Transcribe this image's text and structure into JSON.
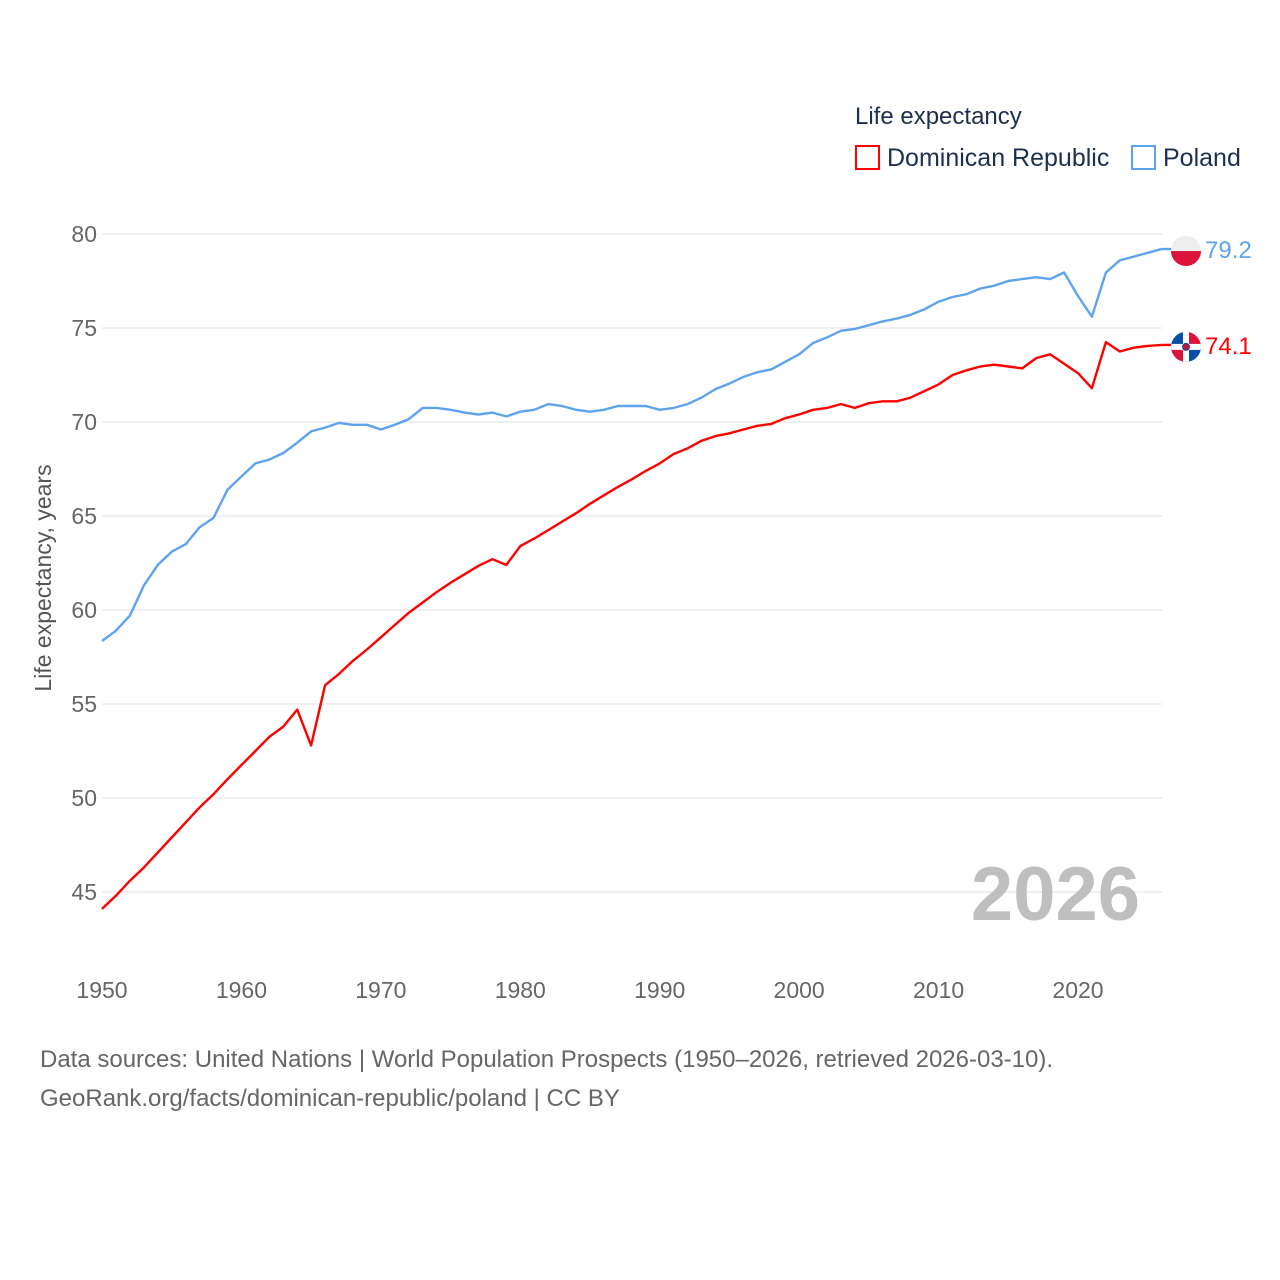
{
  "chart_data": {
    "type": "line",
    "legend_title": "Life expectancy",
    "ylabel": "Life expectancy, years",
    "xlabel": "",
    "xlim": [
      1950,
      2026
    ],
    "ylim": [
      43,
      81
    ],
    "yticks": [
      45,
      50,
      55,
      60,
      65,
      70,
      75,
      80
    ],
    "xticks": [
      1950,
      1960,
      1970,
      1980,
      1990,
      2000,
      2010,
      2020
    ],
    "grid": true,
    "legend_placement": "top-right",
    "current_year": "2026",
    "x_start": 1950,
    "series": [
      {
        "name": "Dominican Republic",
        "color": "#ff0000",
        "end_label": "74.1",
        "values": [
          44.1,
          44.8,
          45.6,
          46.3,
          47.1,
          47.9,
          48.7,
          49.5,
          50.2,
          51.0,
          51.75,
          52.5,
          53.25,
          53.8,
          54.7,
          52.8,
          56.0,
          56.6,
          57.3,
          57.9,
          58.55,
          59.2,
          59.85,
          60.4,
          60.95,
          61.45,
          61.9,
          62.35,
          62.7,
          62.4,
          63.4,
          63.8,
          64.25,
          64.7,
          65.15,
          65.65,
          66.1,
          66.55,
          66.95,
          67.4,
          67.8,
          68.3,
          68.6,
          69.0,
          69.25,
          69.4,
          69.6,
          69.8,
          69.9,
          70.2,
          70.4,
          70.65,
          70.75,
          70.95,
          70.75,
          71.0,
          71.1,
          71.1,
          71.3,
          71.65,
          72.0,
          72.5,
          72.75,
          72.95,
          73.05,
          72.95,
          72.85,
          73.4,
          73.6,
          73.1,
          72.6,
          71.8,
          74.25,
          73.75,
          73.95,
          74.05,
          74.1
        ]
      },
      {
        "name": "Poland",
        "color": "#5ea3ef",
        "end_label": "79.2",
        "values": [
          58.35,
          58.9,
          59.7,
          61.3,
          62.4,
          63.1,
          63.5,
          64.4,
          64.9,
          66.4,
          67.1,
          67.8,
          68.0,
          68.35,
          68.9,
          69.5,
          69.7,
          69.95,
          69.85,
          69.85,
          69.6,
          69.85,
          70.15,
          70.75,
          70.75,
          70.65,
          70.5,
          70.4,
          70.5,
          70.3,
          70.55,
          70.65,
          70.95,
          70.85,
          70.65,
          70.55,
          70.65,
          70.85,
          70.85,
          70.85,
          70.65,
          70.75,
          70.95,
          71.3,
          71.75,
          72.05,
          72.4,
          72.65,
          72.8,
          73.2,
          73.6,
          74.2,
          74.5,
          74.85,
          74.95,
          75.15,
          75.35,
          75.5,
          75.7,
          76.0,
          76.4,
          76.65,
          76.8,
          77.1,
          77.25,
          77.5,
          77.6,
          77.7,
          77.6,
          77.95,
          76.7,
          75.6,
          77.95,
          78.6,
          78.8,
          79.0,
          79.2
        ]
      }
    ]
  },
  "footer": {
    "line1": "Data sources: United Nations | World Population Prospects (1950–2026, retrieved 2026-03-10).",
    "line2": "GeoRank.org/facts/dominican-republic/poland | CC BY"
  }
}
